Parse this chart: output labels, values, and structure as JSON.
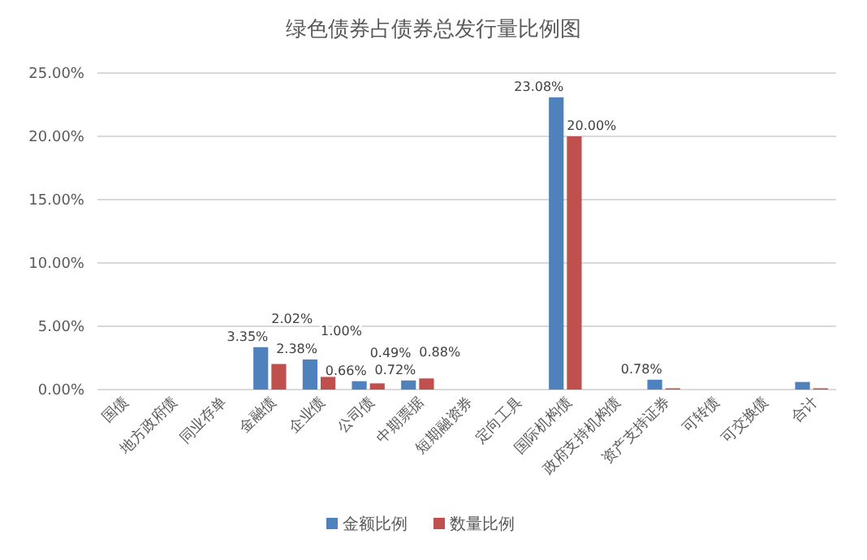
{
  "chart_data": {
    "type": "bar",
    "title": "绿色债券占债券总发行量比例图",
    "categories": [
      "国债",
      "地方政府债",
      "同业存单",
      "金融债",
      "企业债",
      "公司债",
      "中期票据",
      "短期融资券",
      "定向工具",
      "国际机构债",
      "政府支持机构债",
      "资产支持证券",
      "可转债",
      "可交换债",
      "合计"
    ],
    "series": [
      {
        "name": "金额比例",
        "color": "#4f81bd",
        "values": [
          0,
          0,
          0,
          3.35,
          2.38,
          0.66,
          0.72,
          0,
          0,
          23.08,
          0,
          0.78,
          0,
          0,
          0.6
        ],
        "value_labels": [
          null,
          null,
          null,
          "3.35%",
          "2.38%",
          "0.66%",
          "0.72%",
          null,
          null,
          "23.08%",
          null,
          "0.78%",
          null,
          null,
          null
        ]
      },
      {
        "name": "数量比例",
        "color": "#c0504d",
        "values": [
          0,
          0,
          0,
          2.02,
          1.0,
          0.49,
          0.88,
          0,
          0,
          20.0,
          0,
          0.1,
          0,
          0,
          0.1
        ],
        "value_labels": [
          null,
          null,
          null,
          "2.02%",
          "1.00%",
          "0.49%",
          "0.88%",
          null,
          null,
          "20.00%",
          null,
          null,
          null,
          null,
          null
        ]
      }
    ],
    "ylim": [
      0,
      25
    ],
    "yticks": [
      {
        "value": 0,
        "label": "0.00%"
      },
      {
        "value": 5,
        "label": "5.00%"
      },
      {
        "value": 10,
        "label": "10.00%"
      },
      {
        "value": 15,
        "label": "15.00%"
      },
      {
        "value": 20,
        "label": "20.00%"
      },
      {
        "value": 25,
        "label": "25.00%"
      }
    ],
    "grid": "y",
    "legend": "bottom"
  }
}
